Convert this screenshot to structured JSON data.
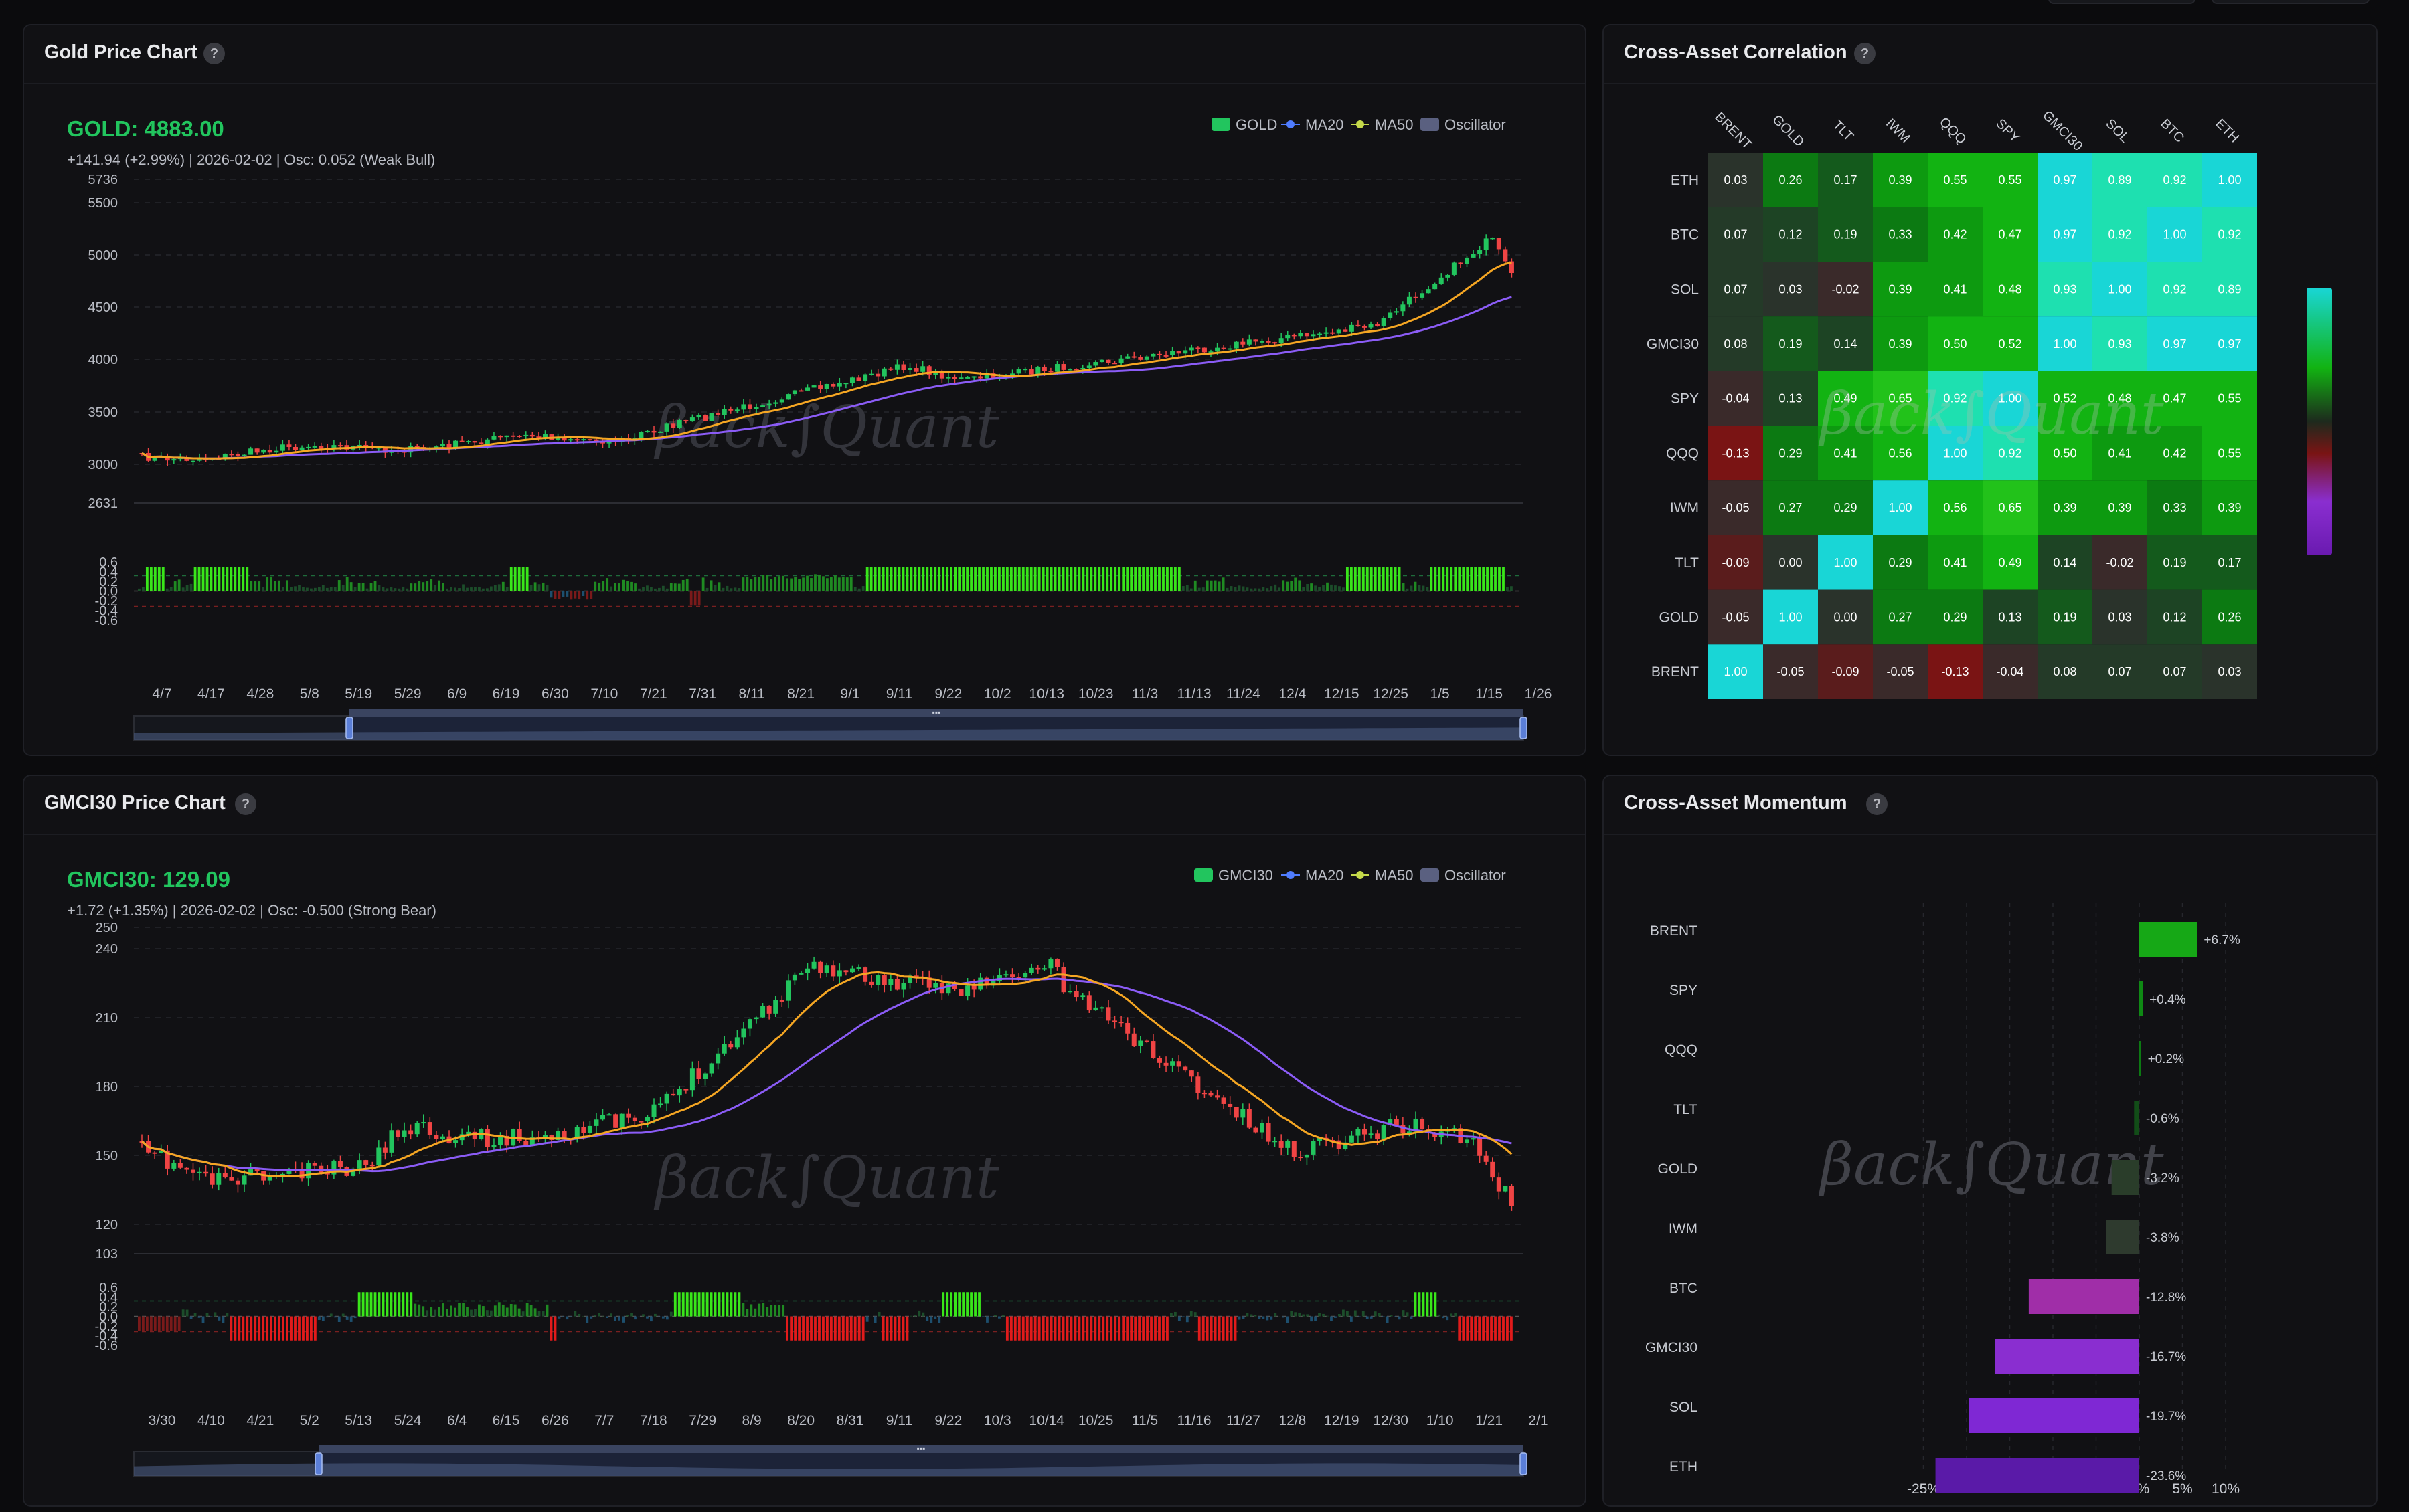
{
  "colors": {
    "up": "#22c55e",
    "down": "#ef4444",
    "ma20": "#f5a623",
    "ma50": "#8b5cf6",
    "bg": "#111114"
  },
  "watermark": "βack∫Quant",
  "gold": {
    "title": "Gold Price Chart",
    "help": "?",
    "price": "GOLD: 4883.00",
    "info": "+141.94 (+2.99%) | 2026-02-02 | Osc: 0.052 (Weak Bull)",
    "legend": [
      {
        "label": "GOLD",
        "icon": "square-icon",
        "color": "#22c55e"
      },
      {
        "label": "MA20",
        "icon": "dot-icon",
        "color": "#4f7cff"
      },
      {
        "label": "MA50",
        "icon": "dot-icon",
        "color": "#c5d94a"
      },
      {
        "label": "Oscillator",
        "icon": "square-icon",
        "color": "#5a6080"
      }
    ],
    "price_ticks": [
      "5736",
      "5500",
      "5000",
      "4500",
      "4000",
      "3500",
      "3000",
      "2631"
    ],
    "osc_ticks": [
      "0.6",
      "0.4",
      "0.2",
      "0.0",
      "-0.2",
      "-0.4",
      "-0.6"
    ],
    "dates": [
      "4/7",
      "4/17",
      "4/28",
      "5/8",
      "5/19",
      "5/29",
      "6/9",
      "6/19",
      "6/30",
      "7/10",
      "7/21",
      "7/31",
      "8/11",
      "8/21",
      "9/1",
      "9/11",
      "9/22",
      "10/2",
      "10/13",
      "10/23",
      "11/3",
      "11/13",
      "11/24",
      "12/4",
      "12/15",
      "12/25",
      "1/5",
      "1/15",
      "1/26"
    ]
  },
  "gmci": {
    "title": "GMCI30 Price Chart",
    "help": "?",
    "price": "GMCI30: 129.09",
    "info": "+1.72 (+1.35%) | 2026-02-02 | Osc: -0.500 (Strong Bear)",
    "legend": [
      {
        "label": "GMCI30",
        "icon": "square-icon",
        "color": "#22c55e"
      },
      {
        "label": "MA20",
        "icon": "dot-icon",
        "color": "#4f7cff"
      },
      {
        "label": "MA50",
        "icon": "dot-icon",
        "color": "#c5d94a"
      },
      {
        "label": "Oscillator",
        "icon": "square-icon",
        "color": "#5a6080"
      }
    ],
    "price_ticks": [
      "250",
      "240",
      "210",
      "180",
      "150",
      "120",
      "103"
    ],
    "osc_ticks": [
      "0.6",
      "0.4",
      "0.2",
      "0.0",
      "-0.2",
      "-0.4",
      "-0.6"
    ],
    "dates": [
      "3/30",
      "4/10",
      "4/21",
      "5/2",
      "5/13",
      "5/24",
      "6/4",
      "6/15",
      "6/26",
      "7/7",
      "7/18",
      "7/29",
      "8/9",
      "8/20",
      "8/31",
      "9/11",
      "9/22",
      "10/3",
      "10/14",
      "10/25",
      "11/5",
      "11/16",
      "11/27",
      "12/8",
      "12/19",
      "12/30",
      "1/10",
      "1/21",
      "2/1"
    ]
  },
  "correlation": {
    "title": "Cross-Asset Correlation",
    "help": "?",
    "columns": [
      "BRENT",
      "GOLD",
      "TLT",
      "IWM",
      "QQQ",
      "SPY",
      "GMCI30",
      "SOL",
      "BTC",
      "ETH"
    ],
    "rows": [
      "ETH",
      "BTC",
      "SOL",
      "GMCI30",
      "SPY",
      "QQQ",
      "IWM",
      "TLT",
      "GOLD",
      "BRENT"
    ],
    "values": [
      [
        "0.03",
        "0.26",
        "0.17",
        "0.39",
        "0.55",
        "0.55",
        "0.97",
        "0.89",
        "0.92",
        "1.00"
      ],
      [
        "0.07",
        "0.12",
        "0.19",
        "0.33",
        "0.42",
        "0.47",
        "0.97",
        "0.92",
        "1.00",
        "0.92"
      ],
      [
        "0.07",
        "0.03",
        "-0.02",
        "0.39",
        "0.41",
        "0.48",
        "0.93",
        "1.00",
        "0.92",
        "0.89"
      ],
      [
        "0.08",
        "0.19",
        "0.14",
        "0.39",
        "0.50",
        "0.52",
        "1.00",
        "0.93",
        "0.97",
        "0.97"
      ],
      [
        "-0.04",
        "0.13",
        "0.49",
        "0.65",
        "0.92",
        "1.00",
        "0.52",
        "0.48",
        "0.47",
        "0.55"
      ],
      [
        "-0.13",
        "0.29",
        "0.41",
        "0.56",
        "1.00",
        "0.92",
        "0.50",
        "0.41",
        "0.42",
        "0.55"
      ],
      [
        "-0.05",
        "0.27",
        "0.29",
        "1.00",
        "0.56",
        "0.65",
        "0.39",
        "0.39",
        "0.33",
        "0.39"
      ],
      [
        "-0.09",
        "0.00",
        "1.00",
        "0.29",
        "0.41",
        "0.49",
        "0.14",
        "-0.02",
        "0.19",
        "0.17"
      ],
      [
        "-0.05",
        "1.00",
        "0.00",
        "0.27",
        "0.29",
        "0.13",
        "0.19",
        "0.03",
        "0.12",
        "0.26"
      ],
      [
        "1.00",
        "-0.05",
        "-0.09",
        "-0.05",
        "-0.13",
        "-0.04",
        "0.08",
        "0.07",
        "0.07",
        "0.03"
      ]
    ]
  },
  "momentum": {
    "title": "Cross-Asset Momentum",
    "help": "?",
    "assets": [
      "BRENT",
      "SPY",
      "QQQ",
      "TLT",
      "GOLD",
      "IWM",
      "BTC",
      "GMCI30",
      "SOL",
      "ETH"
    ],
    "values": [
      6.7,
      0.4,
      0.2,
      -0.6,
      -3.2,
      -3.8,
      -12.8,
      -16.7,
      -19.7,
      -23.6
    ],
    "labels": [
      "+6.7%",
      "+0.4%",
      "+0.2%",
      "-0.6%",
      "-3.2%",
      "-3.8%",
      "-12.8%",
      "-16.7%",
      "-19.7%",
      "-23.6%"
    ],
    "colors": [
      "#16a816",
      "#0f8a14",
      "#0c7a12",
      "#124d18",
      "#2a3d2a",
      "#2e3a2e",
      "#a02ea8",
      "#8a2ed0",
      "#7f28d4",
      "#5a1aa8"
    ],
    "ticks": [
      "-25%",
      "-20%",
      "-15%",
      "-10%",
      "-5%",
      "0%",
      "5%",
      "10%"
    ]
  }
}
